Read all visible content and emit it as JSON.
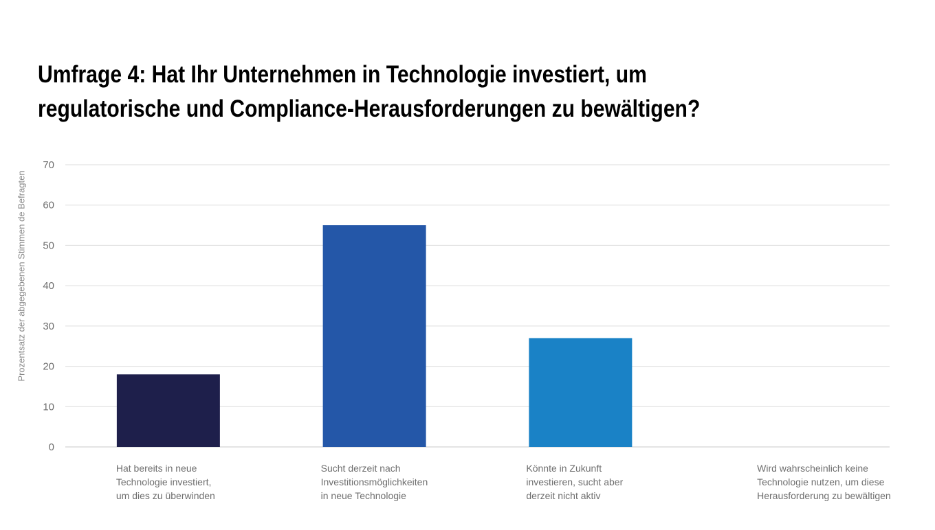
{
  "title_lines": [
    "Umfrage 4: Hat Ihr Unternehmen in Technologie investiert, um",
    "regulatorische und Compliance-Herausforderungen zu bewältigen?"
  ],
  "chart_data": {
    "type": "bar",
    "title": "Umfrage 4: Hat Ihr Unternehmen in Technologie investiert, um regulatorische und Compliance-Herausforderungen zu bewältigen?",
    "ylabel": "Prozentsatz der abgegebenen Stimmen de Befragten",
    "xlabel": "",
    "ylim": [
      0,
      70
    ],
    "yticks": [
      0,
      10,
      20,
      30,
      40,
      50,
      60,
      70
    ],
    "grid": true,
    "legend": "none",
    "categories": [
      "Hat bereits in neue\nTechnologie investiert,\num dies zu überwinden",
      "Sucht derzeit nach\nInvestitionsmöglichkeiten\nin neue Technologie",
      "Könnte in Zukunft\ninvestieren, sucht aber\nderzeit nicht aktiv",
      "Wird wahrscheinlich keine\nTechnologie nutzen, um diese\nHerausforderung zu bewältigen"
    ],
    "values": [
      18,
      55,
      27,
      0
    ],
    "colors": [
      "#1e1f4b",
      "#2457a8",
      "#1a82c6",
      "#cccccc"
    ]
  }
}
